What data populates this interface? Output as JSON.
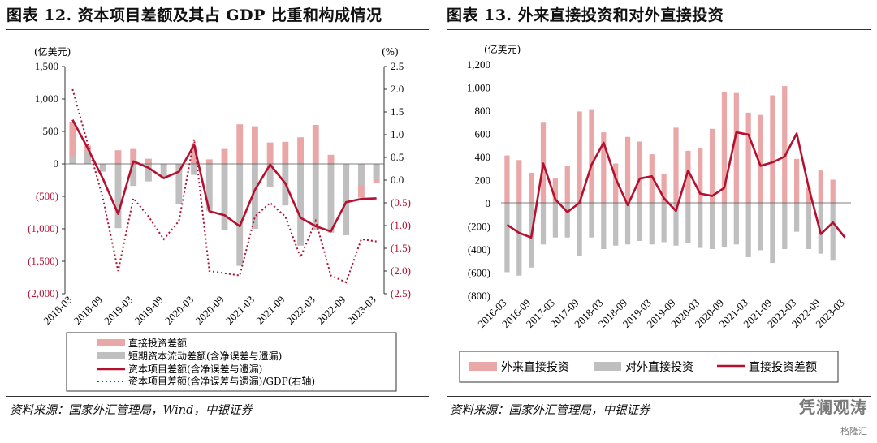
{
  "left": {
    "title": "图表 12. 资本项目差额及其占 GDP 比重和构成情况",
    "left_unit": "(亿美元)",
    "right_unit": "(%)",
    "source": "资料来源：国家外汇管理局，Wind，中银证券",
    "legend": {
      "direct": "直接投资差额",
      "short": "短期资本流动差额(含净误差与遗漏)",
      "capital": "资本项目差额(含净误差与遗漏)",
      "ratio": "资本项目差额(含净误差与遗漏)/GDP(右轴)"
    }
  },
  "right": {
    "title": "图表 13. 外来直接投资和对外直接投资",
    "unit": "(亿美元)",
    "source": "资料来源：国家外汇管理局，中银证券",
    "legend": {
      "inward": "外来直接投资",
      "outward": "对外直接投资",
      "net": "直接投资差额"
    }
  },
  "watermark": {
    "line1": "凭澜观涛",
    "line2": "格隆汇"
  },
  "colors": {
    "pink": "#eaa7a8",
    "gray": "#bfbfbf",
    "red": "#b5102f"
  },
  "chart_data": [
    {
      "type": "bar",
      "title": "图表 12. 资本项目差额及其占 GDP 比重和构成情况",
      "categories": [
        "2018-03",
        "2018-06",
        "2018-09",
        "2018-12",
        "2019-03",
        "2019-06",
        "2019-09",
        "2019-12",
        "2020-03",
        "2020-06",
        "2020-09",
        "2020-12",
        "2021-03",
        "2021-06",
        "2021-09",
        "2021-12",
        "2022-03",
        "2022-06",
        "2022-09",
        "2022-12",
        "2023-03"
      ],
      "x_tick_labels": [
        "2018-03",
        "2018-09",
        "2019-03",
        "2019-09",
        "2020-03",
        "2020-09",
        "2021-03",
        "2021-09",
        "2022-03",
        "2022-09",
        "2023-03"
      ],
      "ylim_left": [
        -2000,
        1500
      ],
      "yticks_left": [
        "1,500",
        "1,000",
        "500",
        "0",
        "(500)",
        "(1,000)",
        "(1,500)",
        "(2,000)"
      ],
      "ylim_right": [
        -2.5,
        2.5
      ],
      "yticks_right": [
        "2.5",
        "2.0",
        "1.5",
        "1.0",
        "0.5",
        "0.0",
        "(0.5)",
        "(1.0)",
        "(1.5)",
        "(2.0)",
        "(2.5)"
      ],
      "series": [
        {
          "name": "直接投资差额",
          "kind": "bar",
          "values": [
            650,
            280,
            -90,
            210,
            230,
            80,
            -30,
            -130,
            270,
            70,
            230,
            610,
            580,
            330,
            340,
            410,
            600,
            140,
            -60,
            -520,
            -290
          ]
        },
        {
          "name": "短期资本流动差额(含净误差与遗漏)",
          "kind": "bar",
          "values": [
            120,
            200,
            -120,
            -990,
            -340,
            -270,
            -230,
            -620,
            -170,
            -720,
            -1020,
            -1570,
            -1000,
            -360,
            -640,
            -1260,
            -1020,
            -1060,
            -1100,
            -330,
            -250
          ]
        },
        {
          "name": "资本项目差额(含净误差与遗漏)",
          "kind": "line",
          "axis": "left",
          "values": [
            680,
            240,
            -230,
            -770,
            40,
            -60,
            -220,
            -120,
            290,
            -730,
            -790,
            -960,
            -400,
            -10,
            -300,
            -830,
            -960,
            -1040,
            -590,
            -540,
            -530
          ]
        },
        {
          "name": "资本项目差额(含净误差与遗漏)/GDP(右轴)",
          "kind": "line",
          "axis": "right",
          "values": [
            2.0,
            0.8,
            -0.4,
            -2.0,
            -0.4,
            -0.8,
            -1.3,
            -0.9,
            0.9,
            -2.0,
            -2.05,
            -2.1,
            -0.8,
            -0.5,
            -0.8,
            -1.7,
            -0.9,
            -2.1,
            -2.25,
            -1.3,
            -1.35
          ]
        }
      ]
    },
    {
      "type": "bar",
      "title": "图表 13. 外来直接投资和对外直接投资",
      "categories": [
        "2016-03",
        "2016-06",
        "2016-09",
        "2016-12",
        "2017-03",
        "2017-06",
        "2017-09",
        "2017-12",
        "2018-03",
        "2018-06",
        "2018-09",
        "2018-12",
        "2019-03",
        "2019-06",
        "2019-09",
        "2019-12",
        "2020-03",
        "2020-06",
        "2020-09",
        "2020-12",
        "2021-03",
        "2021-06",
        "2021-09",
        "2021-12",
        "2022-03",
        "2022-06",
        "2022-09",
        "2022-12",
        "2023-03"
      ],
      "x_tick_labels": [
        "2016-03",
        "2016-09",
        "2017-03",
        "2017-09",
        "2018-03",
        "2018-09",
        "2019-03",
        "2019-09",
        "2020-03",
        "2020-09",
        "2021-03",
        "2021-09",
        "2022-03",
        "2022-09",
        "2023-03"
      ],
      "ylim": [
        -800,
        1200
      ],
      "yticks": [
        "1,200",
        "1,000",
        "800",
        "600",
        "400",
        "200",
        "0",
        "(200)",
        "(400)",
        "(600)",
        "(800)"
      ],
      "series": [
        {
          "name": "外来直接投资",
          "kind": "bar",
          "values": [
            410,
            370,
            260,
            700,
            210,
            320,
            790,
            810,
            610,
            340,
            570,
            530,
            420,
            250,
            650,
            450,
            470,
            640,
            960,
            950,
            780,
            760,
            930,
            1010,
            380,
            130,
            280,
            200,
            0
          ]
        },
        {
          "name": "对外直接投资",
          "kind": "bar",
          "values": [
            -600,
            -630,
            -560,
            -360,
            -300,
            -300,
            -460,
            -300,
            -400,
            -370,
            -360,
            -330,
            -360,
            -340,
            -370,
            -350,
            -390,
            -400,
            -380,
            -360,
            -470,
            -410,
            -520,
            -400,
            -250,
            -400,
            -440,
            -500,
            0
          ]
        },
        {
          "name": "直接投资差额",
          "kind": "line",
          "values": [
            -190,
            -260,
            -300,
            340,
            30,
            -80,
            0,
            330,
            520,
            210,
            -20,
            210,
            230,
            40,
            -70,
            280,
            80,
            60,
            130,
            610,
            590,
            320,
            350,
            400,
            600,
            130,
            -270,
            -170,
            -300
          ]
        }
      ]
    }
  ]
}
